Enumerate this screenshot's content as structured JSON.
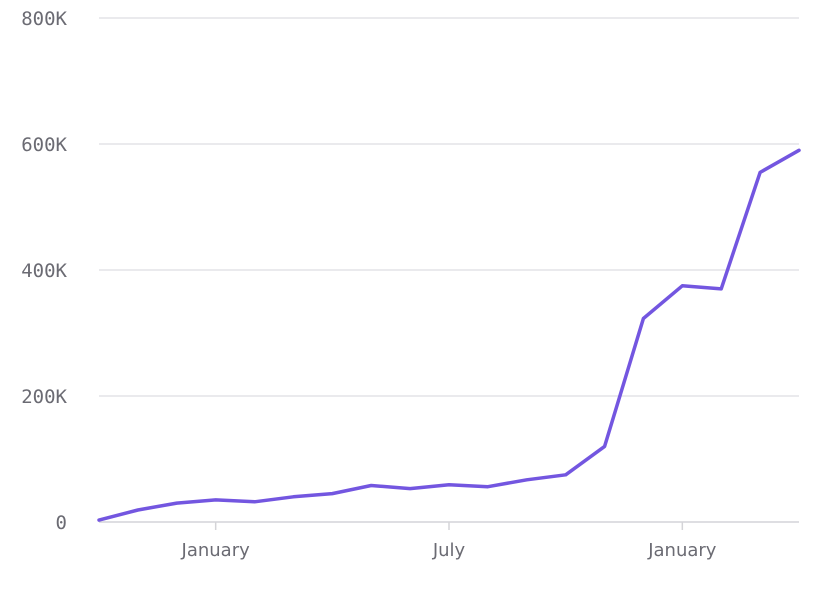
{
  "chart_data": {
    "type": "line",
    "title": "",
    "xlabel": "",
    "ylabel": "",
    "grid": true,
    "legend": "none",
    "color": "#7356e0",
    "x": [
      "2020-10",
      "2020-11",
      "2020-12",
      "2021-01",
      "2021-02",
      "2021-03",
      "2021-04",
      "2021-05",
      "2021-06",
      "2021-07",
      "2021-08",
      "2021-09",
      "2021-10",
      "2021-11",
      "2021-12",
      "2022-01",
      "2022-02",
      "2022-03",
      "2022-04"
    ],
    "y": [
      3000,
      19000,
      30000,
      35000,
      32000,
      40000,
      45000,
      58000,
      53000,
      59000,
      56000,
      67000,
      75000,
      120000,
      323000,
      375000,
      370000,
      555000,
      590000
    ],
    "ylim": [
      0,
      800000
    ],
    "yticks": [
      {
        "value": 0,
        "label": "0"
      },
      {
        "value": 200000,
        "label": "200K"
      },
      {
        "value": 400000,
        "label": "400K"
      },
      {
        "value": 600000,
        "label": "600K"
      },
      {
        "value": 800000,
        "label": "800K"
      }
    ],
    "xticks": [
      {
        "value": "2021-01",
        "label": "January"
      },
      {
        "value": "2021-07",
        "label": "July"
      },
      {
        "value": "2022-01",
        "label": "January"
      }
    ]
  }
}
